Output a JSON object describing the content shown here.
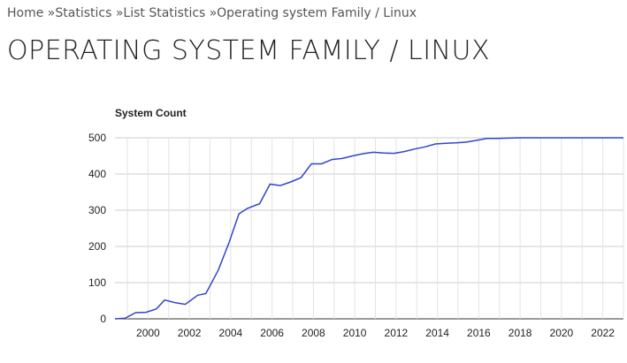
{
  "breadcrumb": {
    "items": [
      "Home",
      "Statistics",
      "List Statistics",
      "Operating system Family / Linux"
    ],
    "separator": "»"
  },
  "page": {
    "title": "OPERATING SYSTEM FAMILY / LINUX"
  },
  "chart_data": {
    "type": "line",
    "title": "System Count",
    "xlabel": "",
    "ylabel": "",
    "xlim": [
      1998.4,
      2023.0
    ],
    "ylim": [
      0,
      500
    ],
    "y_ticks": [
      0,
      100,
      200,
      300,
      400,
      500
    ],
    "x_ticks": [
      2000,
      2002,
      2004,
      2006,
      2008,
      2010,
      2012,
      2014,
      2016,
      2018,
      2020,
      2022
    ],
    "grid": true,
    "legend": "none",
    "series_color": "#3344cc",
    "series": [
      {
        "x": [
          1998.4,
          1998.9,
          1999.4,
          1999.9,
          2000.4,
          2000.8,
          2001.3,
          2001.8,
          2002.4,
          2002.8,
          2003.4,
          2003.9,
          2004.4,
          2004.8,
          2005.4,
          2005.9,
          2006.4,
          2006.9,
          2007.4,
          2007.9,
          2008.4,
          2008.9,
          2009.4,
          2009.9,
          2010.4,
          2010.9,
          2011.4,
          2011.9,
          2012.4,
          2012.9,
          2013.4,
          2013.9,
          2014.4,
          2014.9,
          2015.4,
          2015.9,
          2016.4,
          2016.9,
          2017.4,
          2017.9,
          2018.4,
          2023.0
        ],
        "y": [
          0,
          2,
          17,
          18,
          27,
          52,
          45,
          40,
          65,
          70,
          135,
          208,
          290,
          305,
          318,
          372,
          368,
          378,
          390,
          428,
          428,
          440,
          443,
          450,
          456,
          460,
          458,
          457,
          462,
          469,
          475,
          483,
          485,
          486,
          488,
          493,
          498,
          498,
          499,
          500,
          500,
          500
        ]
      }
    ]
  }
}
